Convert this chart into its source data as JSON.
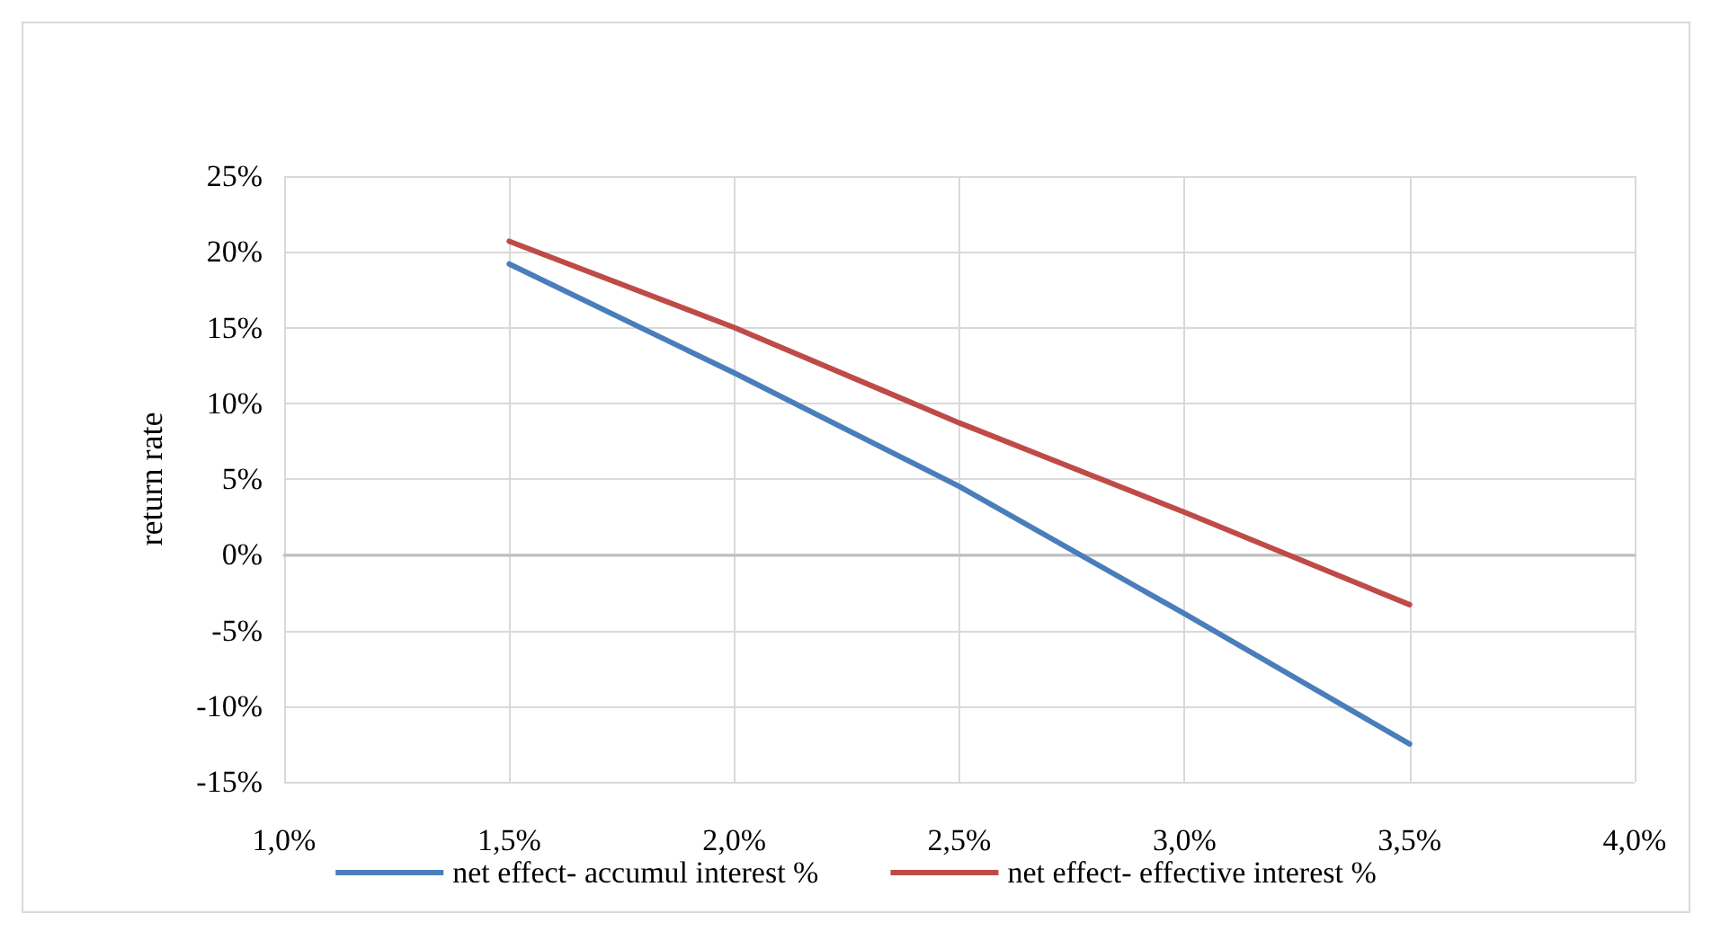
{
  "chart_data": {
    "type": "line",
    "ylabel": "return rate",
    "x": [
      1.5,
      2.0,
      2.5,
      3.0,
      3.5
    ],
    "series": [
      {
        "name": "net effect- accumul interest %",
        "color": "#4a7ebb",
        "values": [
          19.2,
          12.0,
          4.5,
          -3.9,
          -12.5
        ]
      },
      {
        "name": "net effect- effective interest %",
        "color": "#be4b48",
        "values": [
          20.7,
          15.0,
          8.7,
          2.8,
          -3.3
        ]
      }
    ],
    "xlim": [
      1.0,
      4.0
    ],
    "xticks": [
      {
        "value": 1.0,
        "label": "1,0%"
      },
      {
        "value": 1.5,
        "label": "1,5%"
      },
      {
        "value": 2.0,
        "label": "2,0%"
      },
      {
        "value": 2.5,
        "label": "2,5%"
      },
      {
        "value": 3.0,
        "label": "3,0%"
      },
      {
        "value": 3.5,
        "label": "3,5%"
      },
      {
        "value": 4.0,
        "label": "4,0%"
      }
    ],
    "ylim": [
      -15,
      25
    ],
    "yticks": [
      {
        "value": -15,
        "label": "-15%"
      },
      {
        "value": -10,
        "label": "-10%"
      },
      {
        "value": -5,
        "label": "-5%"
      },
      {
        "value": 0,
        "label": "0%"
      },
      {
        "value": 5,
        "label": "5%"
      },
      {
        "value": 10,
        "label": "10%"
      },
      {
        "value": 15,
        "label": "15%"
      },
      {
        "value": 20,
        "label": "20%"
      },
      {
        "value": 25,
        "label": "25%"
      }
    ],
    "grid": true,
    "legend": "bottom",
    "marker": "none",
    "line_style": "solid"
  }
}
